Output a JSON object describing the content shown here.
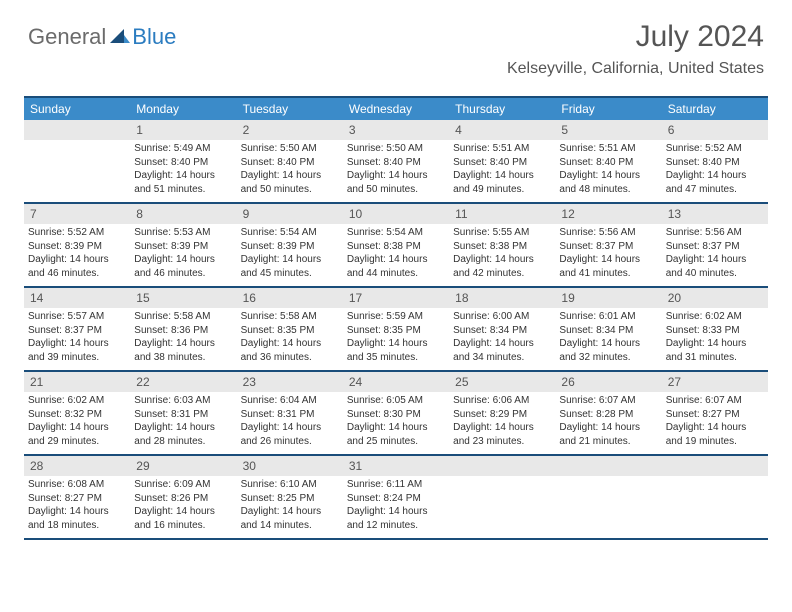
{
  "logo": {
    "text1": "General",
    "text2": "Blue"
  },
  "title": "July 2024",
  "location": "Kelseyville, California, United States",
  "columns": [
    "Sunday",
    "Monday",
    "Tuesday",
    "Wednesday",
    "Thursday",
    "Friday",
    "Saturday"
  ],
  "colors": {
    "header_bg": "#3b8bc9",
    "border": "#1a4d7a",
    "daynum_bg": "#e8e8e8",
    "logo_gray": "#6b6b6b",
    "logo_blue": "#2b7cc0"
  },
  "weeks": [
    [
      {
        "n": "",
        "sr": "",
        "ss": "",
        "dl": ""
      },
      {
        "n": "1",
        "sr": "Sunrise: 5:49 AM",
        "ss": "Sunset: 8:40 PM",
        "dl": "Daylight: 14 hours and 51 minutes."
      },
      {
        "n": "2",
        "sr": "Sunrise: 5:50 AM",
        "ss": "Sunset: 8:40 PM",
        "dl": "Daylight: 14 hours and 50 minutes."
      },
      {
        "n": "3",
        "sr": "Sunrise: 5:50 AM",
        "ss": "Sunset: 8:40 PM",
        "dl": "Daylight: 14 hours and 50 minutes."
      },
      {
        "n": "4",
        "sr": "Sunrise: 5:51 AM",
        "ss": "Sunset: 8:40 PM",
        "dl": "Daylight: 14 hours and 49 minutes."
      },
      {
        "n": "5",
        "sr": "Sunrise: 5:51 AM",
        "ss": "Sunset: 8:40 PM",
        "dl": "Daylight: 14 hours and 48 minutes."
      },
      {
        "n": "6",
        "sr": "Sunrise: 5:52 AM",
        "ss": "Sunset: 8:40 PM",
        "dl": "Daylight: 14 hours and 47 minutes."
      }
    ],
    [
      {
        "n": "7",
        "sr": "Sunrise: 5:52 AM",
        "ss": "Sunset: 8:39 PM",
        "dl": "Daylight: 14 hours and 46 minutes."
      },
      {
        "n": "8",
        "sr": "Sunrise: 5:53 AM",
        "ss": "Sunset: 8:39 PM",
        "dl": "Daylight: 14 hours and 46 minutes."
      },
      {
        "n": "9",
        "sr": "Sunrise: 5:54 AM",
        "ss": "Sunset: 8:39 PM",
        "dl": "Daylight: 14 hours and 45 minutes."
      },
      {
        "n": "10",
        "sr": "Sunrise: 5:54 AM",
        "ss": "Sunset: 8:38 PM",
        "dl": "Daylight: 14 hours and 44 minutes."
      },
      {
        "n": "11",
        "sr": "Sunrise: 5:55 AM",
        "ss": "Sunset: 8:38 PM",
        "dl": "Daylight: 14 hours and 42 minutes."
      },
      {
        "n": "12",
        "sr": "Sunrise: 5:56 AM",
        "ss": "Sunset: 8:37 PM",
        "dl": "Daylight: 14 hours and 41 minutes."
      },
      {
        "n": "13",
        "sr": "Sunrise: 5:56 AM",
        "ss": "Sunset: 8:37 PM",
        "dl": "Daylight: 14 hours and 40 minutes."
      }
    ],
    [
      {
        "n": "14",
        "sr": "Sunrise: 5:57 AM",
        "ss": "Sunset: 8:37 PM",
        "dl": "Daylight: 14 hours and 39 minutes."
      },
      {
        "n": "15",
        "sr": "Sunrise: 5:58 AM",
        "ss": "Sunset: 8:36 PM",
        "dl": "Daylight: 14 hours and 38 minutes."
      },
      {
        "n": "16",
        "sr": "Sunrise: 5:58 AM",
        "ss": "Sunset: 8:35 PM",
        "dl": "Daylight: 14 hours and 36 minutes."
      },
      {
        "n": "17",
        "sr": "Sunrise: 5:59 AM",
        "ss": "Sunset: 8:35 PM",
        "dl": "Daylight: 14 hours and 35 minutes."
      },
      {
        "n": "18",
        "sr": "Sunrise: 6:00 AM",
        "ss": "Sunset: 8:34 PM",
        "dl": "Daylight: 14 hours and 34 minutes."
      },
      {
        "n": "19",
        "sr": "Sunrise: 6:01 AM",
        "ss": "Sunset: 8:34 PM",
        "dl": "Daylight: 14 hours and 32 minutes."
      },
      {
        "n": "20",
        "sr": "Sunrise: 6:02 AM",
        "ss": "Sunset: 8:33 PM",
        "dl": "Daylight: 14 hours and 31 minutes."
      }
    ],
    [
      {
        "n": "21",
        "sr": "Sunrise: 6:02 AM",
        "ss": "Sunset: 8:32 PM",
        "dl": "Daylight: 14 hours and 29 minutes."
      },
      {
        "n": "22",
        "sr": "Sunrise: 6:03 AM",
        "ss": "Sunset: 8:31 PM",
        "dl": "Daylight: 14 hours and 28 minutes."
      },
      {
        "n": "23",
        "sr": "Sunrise: 6:04 AM",
        "ss": "Sunset: 8:31 PM",
        "dl": "Daylight: 14 hours and 26 minutes."
      },
      {
        "n": "24",
        "sr": "Sunrise: 6:05 AM",
        "ss": "Sunset: 8:30 PM",
        "dl": "Daylight: 14 hours and 25 minutes."
      },
      {
        "n": "25",
        "sr": "Sunrise: 6:06 AM",
        "ss": "Sunset: 8:29 PM",
        "dl": "Daylight: 14 hours and 23 minutes."
      },
      {
        "n": "26",
        "sr": "Sunrise: 6:07 AM",
        "ss": "Sunset: 8:28 PM",
        "dl": "Daylight: 14 hours and 21 minutes."
      },
      {
        "n": "27",
        "sr": "Sunrise: 6:07 AM",
        "ss": "Sunset: 8:27 PM",
        "dl": "Daylight: 14 hours and 19 minutes."
      }
    ],
    [
      {
        "n": "28",
        "sr": "Sunrise: 6:08 AM",
        "ss": "Sunset: 8:27 PM",
        "dl": "Daylight: 14 hours and 18 minutes."
      },
      {
        "n": "29",
        "sr": "Sunrise: 6:09 AM",
        "ss": "Sunset: 8:26 PM",
        "dl": "Daylight: 14 hours and 16 minutes."
      },
      {
        "n": "30",
        "sr": "Sunrise: 6:10 AM",
        "ss": "Sunset: 8:25 PM",
        "dl": "Daylight: 14 hours and 14 minutes."
      },
      {
        "n": "31",
        "sr": "Sunrise: 6:11 AM",
        "ss": "Sunset: 8:24 PM",
        "dl": "Daylight: 14 hours and 12 minutes."
      },
      {
        "n": "",
        "sr": "",
        "ss": "",
        "dl": ""
      },
      {
        "n": "",
        "sr": "",
        "ss": "",
        "dl": ""
      },
      {
        "n": "",
        "sr": "",
        "ss": "",
        "dl": ""
      }
    ]
  ]
}
